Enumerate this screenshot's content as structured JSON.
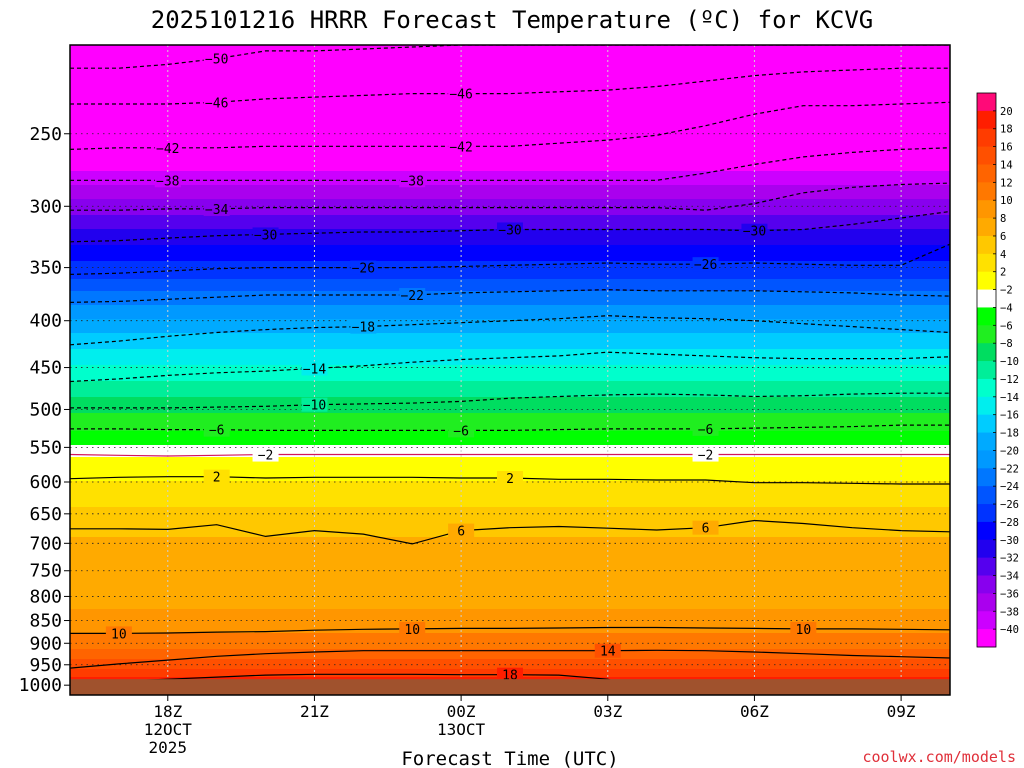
{
  "chart_data": {
    "type": "heatmap",
    "title": "2025101216 HRRR Forecast Temperature (ºC) for KCVG",
    "xlabel": "Forecast Time (UTC)",
    "ylabel": "",
    "credit": "coolwx.com/models",
    "x_ticks": [
      {
        "hour": 2,
        "lines": [
          "18Z",
          "12OCT",
          "2025"
        ]
      },
      {
        "hour": 5,
        "lines": [
          "21Z"
        ]
      },
      {
        "hour": 8,
        "lines": [
          "00Z",
          "13OCT"
        ]
      },
      {
        "hour": 11,
        "lines": [
          "03Z"
        ]
      },
      {
        "hour": 14,
        "lines": [
          "06Z"
        ]
      },
      {
        "hour": 17,
        "lines": [
          "09Z"
        ]
      }
    ],
    "x_range_hours": [
      0,
      18
    ],
    "y_pressure_ticks": [
      250,
      300,
      350,
      400,
      450,
      500,
      550,
      600,
      650,
      700,
      750,
      800,
      850,
      900,
      950,
      1000
    ],
    "y_range_hpa": [
      200,
      1025
    ],
    "y_scale": "log-pressure (inverted)",
    "surface_pressure_hpa": 985,
    "colorbar": {
      "ticks": [
        20,
        18,
        16,
        14,
        12,
        10,
        8,
        6,
        4,
        2,
        -2,
        -4,
        -6,
        -8,
        -10,
        -12,
        -14,
        -16,
        -18,
        -20,
        -22,
        -24,
        -26,
        -28,
        -30,
        -32,
        -34,
        -36,
        -38,
        -40
      ],
      "colors": [
        "#ff0a78",
        "#ff1e00",
        "#ff3c00",
        "#ff5000",
        "#ff6400",
        "#ff7800",
        "#ff9600",
        "#ffaa00",
        "#ffc800",
        "#ffe100",
        "#ffff00",
        "#ffffff",
        "#00ff00",
        "#20ee20",
        "#00dd60",
        "#00ee99",
        "#00ffcc",
        "#00eeee",
        "#00ccff",
        "#00aaff",
        "#0099ff",
        "#0077ff",
        "#0055ff",
        "#0033ff",
        "#0000ff",
        "#2200ee",
        "#5500ee",
        "#8800ee",
        "#aa00ee",
        "#cc00ff",
        "#ff00ff"
      ]
    },
    "isotherm_profile": [
      {
        "p": 200,
        "t": -55
      },
      {
        "p": 220,
        "t": -52
      },
      {
        "p": 240,
        "t": -47
      },
      {
        "p": 260,
        "t": -43
      },
      {
        "p": 280,
        "t": -39
      },
      {
        "p": 300,
        "t": -35
      },
      {
        "p": 330,
        "t": -30
      },
      {
        "p": 360,
        "t": -26
      },
      {
        "p": 390,
        "t": -21
      },
      {
        "p": 420,
        "t": -17
      },
      {
        "p": 460,
        "t": -12.5
      },
      {
        "p": 500,
        "t": -8.5
      },
      {
        "p": 540,
        "t": -5
      },
      {
        "p": 570,
        "t": -1
      },
      {
        "p": 600,
        "t": 2
      },
      {
        "p": 650,
        "t": 4.5
      },
      {
        "p": 700,
        "t": 6.5
      },
      {
        "p": 750,
        "t": 7.5
      },
      {
        "p": 800,
        "t": 7
      },
      {
        "p": 850,
        "t": 9
      },
      {
        "p": 900,
        "t": 11
      },
      {
        "p": 950,
        "t": 15
      },
      {
        "p": 985,
        "t": 18.5
      }
    ],
    "contours": [
      {
        "t": -50,
        "p": [
          212,
          212,
          210,
          207,
          203,
          203,
          202,
          201,
          200,
          200,
          200,
          200,
          200,
          200,
          200,
          200,
          200,
          200,
          200
        ],
        "labels": [
          3
        ]
      },
      {
        "t": -46,
        "p": [
          232,
          232,
          232,
          231,
          229,
          228,
          227,
          226,
          226,
          226,
          225,
          224,
          222,
          219,
          216,
          214,
          213,
          212,
          212
        ],
        "labels": [
          3,
          8
        ]
      },
      {
        "t": -42,
        "p": [
          260,
          259,
          259,
          259,
          258,
          258,
          258,
          258,
          258,
          258,
          256,
          254,
          251,
          245,
          238,
          233,
          233,
          232,
          231
        ],
        "labels": [
          2,
          8
        ]
      },
      {
        "t": -38,
        "p": [
          281,
          281,
          281,
          281,
          281,
          281,
          281,
          281,
          281,
          281,
          281,
          281,
          281,
          276,
          270,
          265,
          262,
          260,
          259
        ],
        "labels": [
          2,
          7
        ]
      },
      {
        "t": -34,
        "p": [
          303,
          303,
          302,
          302,
          301,
          301,
          301,
          301,
          301,
          301,
          301,
          301,
          301,
          303,
          298,
          290,
          286,
          284,
          283
        ],
        "labels": [
          3
        ]
      },
      {
        "t": -30,
        "p": [
          328,
          327,
          325,
          323,
          322,
          321,
          320,
          320,
          319,
          318,
          318,
          318,
          318,
          318,
          319,
          318,
          314,
          309,
          304
        ],
        "labels": [
          4,
          9,
          14
        ]
      },
      {
        "t": -26,
        "p": [
          356,
          355,
          353,
          351,
          350,
          350,
          350,
          350,
          349,
          348,
          347,
          346,
          347,
          347,
          346,
          347,
          348,
          348,
          330
        ],
        "labels": [
          6,
          13
        ]
      },
      {
        "t": -22,
        "p": [
          382,
          381,
          379,
          377,
          375,
          375,
          375,
          375,
          373,
          372,
          371,
          370,
          371,
          371,
          371,
          372,
          373,
          375,
          376
        ],
        "labels": [
          7
        ]
      },
      {
        "t": -18,
        "p": [
          425,
          421,
          416,
          412,
          409,
          407,
          406,
          404,
          402,
          400,
          398,
          395,
          397,
          398,
          400,
          403,
          406,
          409,
          412
        ],
        "labels": [
          6
        ]
      },
      {
        "t": -14,
        "p": [
          466,
          463,
          459,
          456,
          454,
          451,
          448,
          444,
          441,
          439,
          437,
          433,
          435,
          437,
          439,
          440,
          440,
          440,
          438
        ],
        "labels": [
          5
        ]
      },
      {
        "t": -10,
        "p": [
          498,
          498,
          498,
          497,
          496,
          494,
          493,
          492,
          490,
          486,
          484,
          482,
          481,
          482,
          484,
          483,
          481,
          480,
          480
        ],
        "labels": [
          5
        ]
      },
      {
        "t": -6,
        "p": [
          525,
          525,
          526,
          526,
          527,
          527,
          527,
          527,
          527,
          527,
          526,
          525,
          525,
          525,
          524,
          523,
          522,
          520,
          520
        ],
        "labels": [
          3,
          8,
          13
        ]
      },
      {
        "t": -2,
        "p": [
          560,
          561,
          562,
          561,
          560,
          560,
          560,
          560,
          560,
          560,
          560,
          560,
          560,
          560,
          560,
          560,
          560,
          560,
          560
        ],
        "labels": [
          4,
          13
        ]
      },
      {
        "t": 2,
        "p": [
          595,
          593,
          592,
          592,
          594,
          593,
          593,
          593,
          594,
          594,
          596,
          596,
          597,
          597,
          601,
          601,
          602,
          603,
          603
        ],
        "labels": [
          3,
          9
        ]
      },
      {
        "t": 6,
        "p": [
          675,
          675,
          676,
          668,
          688,
          678,
          684,
          701,
          678,
          673,
          671,
          674,
          677,
          673,
          661,
          666,
          673,
          678,
          680
        ],
        "labels": [
          8,
          13
        ]
      },
      {
        "t": 10,
        "p": [
          878,
          878,
          877,
          875,
          874,
          871,
          869,
          868,
          867,
          867,
          866,
          865,
          865,
          866,
          867,
          868,
          868,
          869,
          870
        ],
        "labels": [
          1,
          7,
          15
        ]
      },
      {
        "t": 14,
        "p": [
          958,
          948,
          939,
          930,
          924,
          920,
          917,
          917,
          917,
          917,
          917,
          917,
          916,
          917,
          920,
          924,
          928,
          931,
          934
        ],
        "labels": [
          11
        ]
      },
      {
        "t": 18,
        "p": [
          1025,
          990,
          985,
          980,
          975,
          973,
          973,
          973,
          974,
          974,
          975,
          985,
          1025,
          1025,
          1025,
          1025,
          1025,
          1025,
          1025
        ],
        "labels": [
          9
        ]
      }
    ],
    "grid": true
  }
}
